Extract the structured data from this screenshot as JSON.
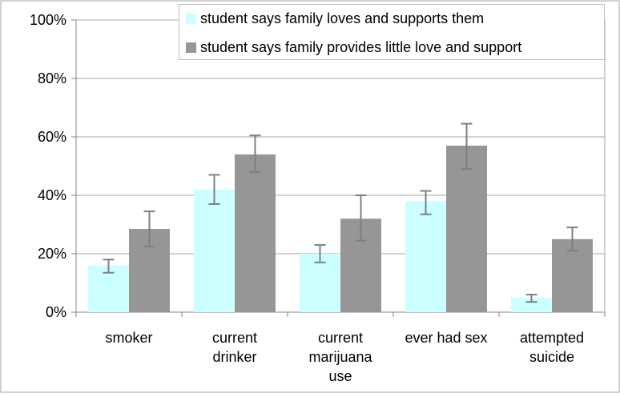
{
  "chart_data": {
    "type": "bar",
    "categories": [
      [
        "smoker"
      ],
      [
        "current",
        "drinker"
      ],
      [
        "current",
        "marijuana",
        "use"
      ],
      [
        "ever had sex"
      ],
      [
        "attempted",
        "suicide"
      ]
    ],
    "series": [
      {
        "name": "student says family loves and supports them",
        "color": "#ccffff",
        "values": [
          16,
          42,
          20,
          38,
          5
        ],
        "error_low": [
          13.5,
          37,
          17,
          33.5,
          3.5
        ],
        "error_high": [
          18,
          47,
          23,
          41.5,
          6
        ]
      },
      {
        "name": "student says family provides little love and support",
        "color": "#969696",
        "values": [
          28.5,
          54,
          32,
          57,
          25
        ],
        "error_low": [
          22.5,
          48,
          24.5,
          49,
          21
        ],
        "error_high": [
          34.5,
          60.5,
          40,
          64.5,
          29
        ]
      }
    ],
    "y_ticks": [
      "0%",
      "20%",
      "40%",
      "60%",
      "80%",
      "100%"
    ],
    "ylim": [
      0,
      100
    ],
    "grid": true,
    "legend_position": "top-right"
  }
}
